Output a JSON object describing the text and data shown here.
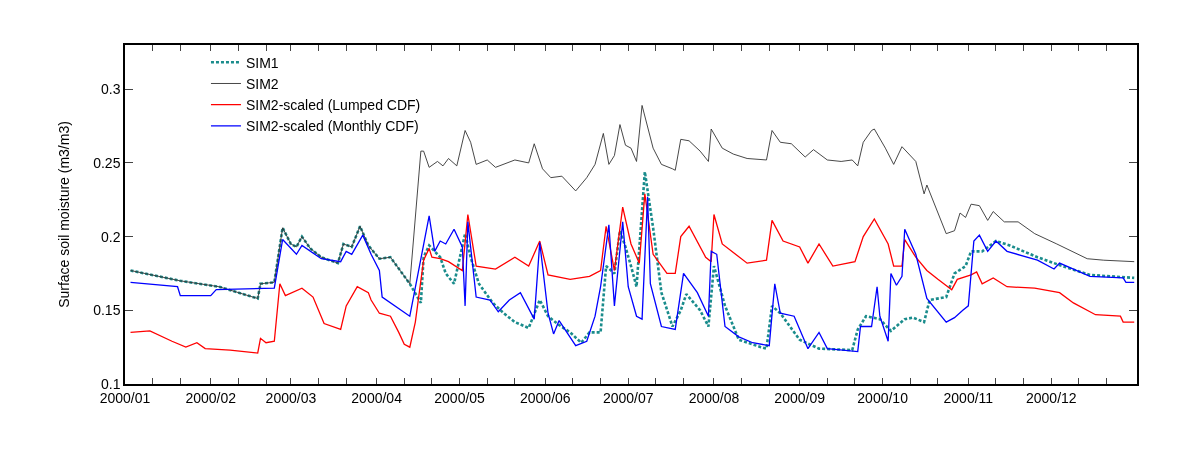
{
  "chart_data": {
    "type": "line",
    "ylabel": "Surface soil moisture (m3/m3)",
    "xlim": [
      "2000-01-01",
      "2001-01-01"
    ],
    "xticks": [
      {
        "value": "2000-01-01",
        "label": "2000/01"
      },
      {
        "value": "2000-01-11",
        "label": null
      },
      {
        "value": "2000-01-21",
        "label": null
      },
      {
        "value": "2000-02-01",
        "label": "2000/02"
      },
      {
        "value": "2000-02-11",
        "label": null
      },
      {
        "value": "2000-02-21",
        "label": null
      },
      {
        "value": "2000-03-01",
        "label": "2000/03"
      },
      {
        "value": "2000-03-11",
        "label": null
      },
      {
        "value": "2000-03-21",
        "label": null
      },
      {
        "value": "2000-04-01",
        "label": "2000/04"
      },
      {
        "value": "2000-04-11",
        "label": null
      },
      {
        "value": "2000-04-21",
        "label": null
      },
      {
        "value": "2000-05-01",
        "label": "2000/05"
      },
      {
        "value": "2000-05-11",
        "label": null
      },
      {
        "value": "2000-05-21",
        "label": null
      },
      {
        "value": "2000-06-01",
        "label": "2000/06"
      },
      {
        "value": "2000-06-11",
        "label": null
      },
      {
        "value": "2000-06-21",
        "label": null
      },
      {
        "value": "2000-07-01",
        "label": "2000/07"
      },
      {
        "value": "2000-07-11",
        "label": null
      },
      {
        "value": "2000-07-21",
        "label": null
      },
      {
        "value": "2000-08-01",
        "label": "2000/08"
      },
      {
        "value": "2000-08-11",
        "label": null
      },
      {
        "value": "2000-08-21",
        "label": null
      },
      {
        "value": "2000-09-01",
        "label": "2000/09"
      },
      {
        "value": "2000-09-11",
        "label": null
      },
      {
        "value": "2000-09-21",
        "label": null
      },
      {
        "value": "2000-10-01",
        "label": "2000/10"
      },
      {
        "value": "2000-10-11",
        "label": null
      },
      {
        "value": "2000-10-21",
        "label": null
      },
      {
        "value": "2000-11-01",
        "label": "2000/11"
      },
      {
        "value": "2000-11-11",
        "label": null
      },
      {
        "value": "2000-11-21",
        "label": null
      },
      {
        "value": "2000-12-01",
        "label": "2000/12"
      },
      {
        "value": "2000-12-11",
        "label": null
      },
      {
        "value": "2000-12-21",
        "label": null
      }
    ],
    "ylim": [
      0.1,
      0.33
    ],
    "yticks": [
      0.1,
      0.15,
      0.2,
      0.25,
      0.3
    ],
    "legend": "top left",
    "marker": "none",
    "series": [
      {
        "name": "SIM1",
        "color": "#1a8c8c",
        "line_style": "dotted",
        "x": [
          "2000-01-03",
          "2000-01-21",
          "2000-02-04",
          "2000-02-18",
          "2000-02-19",
          "2000-02-24",
          "2000-02-27",
          "2000-03-01",
          "2000-03-03",
          "2000-03-05",
          "2000-03-08",
          "2000-03-12",
          "2000-03-18",
          "2000-03-20",
          "2000-03-23",
          "2000-03-26",
          "2000-03-29",
          "2000-04-02",
          "2000-04-06",
          "2000-04-13",
          "2000-04-17",
          "2000-04-18",
          "2000-04-20",
          "2000-04-24",
          "2000-04-26",
          "2000-04-29",
          "2000-05-03",
          "2000-05-05",
          "2000-05-08",
          "2000-05-13",
          "2000-05-17",
          "2000-05-21",
          "2000-05-26",
          "2000-05-30",
          "2000-06-02",
          "2000-06-06",
          "2000-06-10",
          "2000-06-14",
          "2000-06-17",
          "2000-06-21",
          "2000-06-23",
          "2000-06-26",
          "2000-06-28",
          "2000-06-30",
          "2000-07-02",
          "2000-07-04",
          "2000-07-07",
          "2000-07-10",
          "2000-07-13",
          "2000-07-17",
          "2000-07-20",
          "2000-07-22",
          "2000-07-27",
          "2000-07-30",
          "2000-08-01",
          "2000-08-05",
          "2000-08-10",
          "2000-08-18",
          "2000-08-20",
          "2000-08-22",
          "2000-08-25",
          "2000-09-01",
          "2000-09-08",
          "2000-09-20",
          "2000-09-22",
          "2000-09-25",
          "2000-09-30",
          "2000-10-04",
          "2000-10-09",
          "2000-10-12",
          "2000-10-16",
          "2000-10-18",
          "2000-10-24",
          "2000-10-27",
          "2000-10-31",
          "2000-11-02",
          "2000-11-06",
          "2000-11-11",
          "2000-11-16",
          "2000-11-26",
          "2000-12-05",
          "2000-12-15",
          "2000-12-31"
        ],
        "values": [
          0.177,
          0.17,
          0.166,
          0.158,
          0.168,
          0.169,
          0.206,
          0.195,
          0.193,
          0.2,
          0.192,
          0.186,
          0.182,
          0.195,
          0.193,
          0.207,
          0.194,
          0.185,
          0.186,
          0.168,
          0.155,
          0.186,
          0.194,
          0.186,
          0.175,
          0.168,
          0.202,
          0.186,
          0.168,
          0.155,
          0.148,
          0.142,
          0.138,
          0.157,
          0.146,
          0.14,
          0.135,
          0.128,
          0.135,
          0.135,
          0.18,
          0.175,
          0.204,
          0.193,
          0.18,
          0.166,
          0.244,
          0.206,
          0.162,
          0.139,
          0.15,
          0.161,
          0.15,
          0.139,
          0.18,
          0.153,
          0.13,
          0.125,
          0.124,
          0.153,
          0.148,
          0.13,
          0.124,
          0.123,
          0.137,
          0.146,
          0.144,
          0.136,
          0.144,
          0.145,
          0.142,
          0.157,
          0.159,
          0.175,
          0.18,
          0.19,
          0.19,
          0.197,
          0.194,
          0.186,
          0.18,
          0.174,
          0.172
        ]
      },
      {
        "name": "SIM2",
        "color": "#333333",
        "line_style": "solid",
        "x": [
          "2000-01-03",
          "2000-01-21",
          "2000-02-04",
          "2000-02-18",
          "2000-02-19",
          "2000-02-24",
          "2000-02-27",
          "2000-03-01",
          "2000-03-03",
          "2000-03-05",
          "2000-03-08",
          "2000-03-12",
          "2000-03-18",
          "2000-03-20",
          "2000-03-23",
          "2000-03-26",
          "2000-03-29",
          "2000-04-02",
          "2000-04-06",
          "2000-04-13",
          "2000-04-17",
          "2000-04-18",
          "2000-04-20",
          "2000-04-23",
          "2000-04-25",
          "2000-04-27",
          "2000-04-30",
          "2000-05-03",
          "2000-05-05",
          "2000-05-07",
          "2000-05-11",
          "2000-05-14",
          "2000-05-21",
          "2000-05-26",
          "2000-05-28",
          "2000-05-31",
          "2000-06-03",
          "2000-06-07",
          "2000-06-12",
          "2000-06-16",
          "2000-06-19",
          "2000-06-22",
          "2000-06-24",
          "2000-06-26",
          "2000-06-28",
          "2000-06-30",
          "2000-07-02",
          "2000-07-04",
          "2000-07-06",
          "2000-07-10",
          "2000-07-13",
          "2000-07-17",
          "2000-07-18",
          "2000-07-20",
          "2000-07-23",
          "2000-07-27",
          "2000-07-30",
          "2000-07-31",
          "2000-08-04",
          "2000-08-08",
          "2000-08-13",
          "2000-08-20",
          "2000-08-22",
          "2000-08-25",
          "2000-08-29",
          "2000-09-03",
          "2000-09-06",
          "2000-09-11",
          "2000-09-16",
          "2000-09-20",
          "2000-09-22",
          "2000-09-24",
          "2000-09-27",
          "2000-09-28",
          "2000-10-02",
          "2000-10-05",
          "2000-10-08",
          "2000-10-13",
          "2000-10-16",
          "2000-10-17",
          "2000-10-24",
          "2000-10-27",
          "2000-10-29",
          "2000-10-31",
          "2000-11-02",
          "2000-11-05",
          "2000-11-08",
          "2000-11-10",
          "2000-11-14",
          "2000-11-19",
          "2000-11-25",
          "2000-12-03",
          "2000-12-14",
          "2000-12-20",
          "2000-12-31"
        ],
        "values": [
          0.177,
          0.17,
          0.166,
          0.158,
          0.168,
          0.169,
          0.206,
          0.195,
          0.193,
          0.2,
          0.192,
          0.186,
          0.182,
          0.195,
          0.193,
          0.207,
          0.194,
          0.185,
          0.186,
          0.168,
          0.258,
          0.258,
          0.247,
          0.251,
          0.248,
          0.253,
          0.248,
          0.272,
          0.264,
          0.249,
          0.252,
          0.247,
          0.252,
          0.25,
          0.263,
          0.246,
          0.24,
          0.241,
          0.231,
          0.24,
          0.249,
          0.27,
          0.249,
          0.255,
          0.276,
          0.262,
          0.26,
          0.251,
          0.289,
          0.26,
          0.249,
          0.246,
          0.245,
          0.266,
          0.265,
          0.258,
          0.251,
          0.273,
          0.26,
          0.256,
          0.253,
          0.252,
          0.272,
          0.264,
          0.263,
          0.254,
          0.259,
          0.252,
          0.251,
          0.252,
          0.248,
          0.264,
          0.272,
          0.273,
          0.26,
          0.249,
          0.261,
          0.251,
          0.229,
          0.235,
          0.202,
          0.204,
          0.216,
          0.213,
          0.222,
          0.221,
          0.211,
          0.217,
          0.21,
          0.21,
          0.202,
          0.195,
          0.185,
          0.184,
          0.183
        ]
      },
      {
        "name": "SIM2-scaled (Lumped CDF)",
        "color": "#ff0000",
        "line_style": "solid",
        "x": [
          "2000-01-03",
          "2000-01-10",
          "2000-01-18",
          "2000-01-23",
          "2000-01-27",
          "2000-01-30",
          "2000-02-08",
          "2000-02-18",
          "2000-02-19",
          "2000-02-21",
          "2000-02-24",
          "2000-02-26",
          "2000-02-28",
          "2000-03-05",
          "2000-03-09",
          "2000-03-13",
          "2000-03-19",
          "2000-03-21",
          "2000-03-25",
          "2000-03-29",
          "2000-03-30",
          "2000-04-02",
          "2000-04-06",
          "2000-04-09",
          "2000-04-11",
          "2000-04-13",
          "2000-04-15",
          "2000-04-18",
          "2000-04-20",
          "2000-04-21",
          "2000-04-24",
          "2000-04-27",
          "2000-05-02",
          "2000-05-04",
          "2000-05-07",
          "2000-05-14",
          "2000-05-21",
          "2000-05-26",
          "2000-05-30",
          "2000-06-02",
          "2000-06-10",
          "2000-06-17",
          "2000-06-21",
          "2000-06-23",
          "2000-06-26",
          "2000-06-29",
          "2000-07-02",
          "2000-07-05",
          "2000-07-07",
          "2000-07-10",
          "2000-07-15",
          "2000-07-18",
          "2000-07-20",
          "2000-07-23",
          "2000-07-29",
          "2000-07-31",
          "2000-08-01",
          "2000-08-04",
          "2000-08-13",
          "2000-08-20",
          "2000-08-22",
          "2000-08-26",
          "2000-09-01",
          "2000-09-04",
          "2000-09-08",
          "2000-09-13",
          "2000-09-21",
          "2000-09-24",
          "2000-09-28",
          "2000-10-03",
          "2000-10-05",
          "2000-10-08",
          "2000-10-09",
          "2000-10-13",
          "2000-10-17",
          "2000-10-21",
          "2000-10-26",
          "2000-10-28",
          "2000-11-02",
          "2000-11-04",
          "2000-11-06",
          "2000-11-10",
          "2000-11-15",
          "2000-11-25",
          "2000-12-04",
          "2000-12-09",
          "2000-12-17",
          "2000-12-26",
          "2000-12-27",
          "2000-12-31"
        ],
        "values": [
          0.135,
          0.136,
          0.129,
          0.125,
          0.128,
          0.124,
          0.123,
          0.121,
          0.131,
          0.128,
          0.129,
          0.168,
          0.16,
          0.165,
          0.159,
          0.141,
          0.137,
          0.153,
          0.166,
          0.162,
          0.157,
          0.148,
          0.146,
          0.135,
          0.127,
          0.125,
          0.142,
          0.184,
          0.192,
          0.186,
          0.185,
          0.183,
          0.177,
          0.215,
          0.18,
          0.178,
          0.186,
          0.18,
          0.197,
          0.174,
          0.171,
          0.173,
          0.177,
          0.207,
          0.177,
          0.22,
          0.195,
          0.182,
          0.229,
          0.188,
          0.175,
          0.175,
          0.2,
          0.207,
          0.186,
          0.183,
          0.215,
          0.195,
          0.182,
          0.184,
          0.211,
          0.197,
          0.193,
          0.182,
          0.195,
          0.18,
          0.183,
          0.2,
          0.212,
          0.195,
          0.18,
          0.18,
          0.198,
          0.186,
          0.177,
          0.171,
          0.164,
          0.171,
          0.174,
          0.176,
          0.168,
          0.172,
          0.166,
          0.165,
          0.162,
          0.155,
          0.147,
          0.146,
          0.142,
          0.142
        ]
      },
      {
        "name": "SIM2-scaled (Monthly CDF)",
        "color": "#0000ff",
        "line_style": "solid",
        "x": [
          "2000-01-03",
          "2000-01-20",
          "2000-01-21",
          "2000-02-01",
          "2000-02-03",
          "2000-02-24",
          "2000-02-27",
          "2000-03-03",
          "2000-03-05",
          "2000-03-12",
          "2000-03-19",
          "2000-03-21",
          "2000-03-23",
          "2000-03-27",
          "2000-03-30",
          "2000-04-02",
          "2000-04-03",
          "2000-04-13",
          "2000-04-20",
          "2000-04-22",
          "2000-04-24",
          "2000-04-26",
          "2000-04-29",
          "2000-05-02",
          "2000-05-03",
          "2000-05-04",
          "2000-05-07",
          "2000-05-12",
          "2000-05-15",
          "2000-05-19",
          "2000-05-23",
          "2000-05-28",
          "2000-05-30",
          "2000-06-02",
          "2000-06-04",
          "2000-06-06",
          "2000-06-12",
          "2000-06-16",
          "2000-06-19",
          "2000-06-21",
          "2000-06-24",
          "2000-06-26",
          "2000-06-29",
          "2000-07-01",
          "2000-07-04",
          "2000-07-06",
          "2000-07-08",
          "2000-07-09",
          "2000-07-13",
          "2000-07-18",
          "2000-07-21",
          "2000-07-26",
          "2000-07-30",
          "2000-07-31",
          "2000-08-02",
          "2000-08-05",
          "2000-08-10",
          "2000-08-15",
          "2000-08-21",
          "2000-08-23",
          "2000-08-25",
          "2000-08-30",
          "2000-09-04",
          "2000-09-08",
          "2000-09-11",
          "2000-09-22",
          "2000-09-23",
          "2000-09-27",
          "2000-09-29",
          "2000-09-30",
          "2000-10-03",
          "2000-10-04",
          "2000-10-06",
          "2000-10-08",
          "2000-10-09",
          "2000-10-13",
          "2000-10-17",
          "2000-10-24",
          "2000-10-27",
          "2000-10-30",
          "2000-11-01",
          "2000-11-03",
          "2000-11-05",
          "2000-11-08",
          "2000-11-11",
          "2000-11-15",
          "2000-11-26",
          "2000-12-02",
          "2000-12-04",
          "2000-12-15",
          "2000-12-27",
          "2000-12-28",
          "2000-12-31"
        ],
        "values": [
          0.169,
          0.166,
          0.16,
          0.16,
          0.164,
          0.165,
          0.198,
          0.188,
          0.194,
          0.185,
          0.183,
          0.19,
          0.188,
          0.201,
          0.188,
          0.177,
          0.159,
          0.146,
          0.214,
          0.19,
          0.197,
          0.195,
          0.205,
          0.193,
          0.153,
          0.21,
          0.159,
          0.157,
          0.149,
          0.157,
          0.162,
          0.144,
          0.196,
          0.148,
          0.134,
          0.143,
          0.126,
          0.129,
          0.146,
          0.166,
          0.208,
          0.153,
          0.21,
          0.166,
          0.146,
          0.144,
          0.227,
          0.168,
          0.139,
          0.137,
          0.175,
          0.162,
          0.146,
          0.19,
          0.188,
          0.139,
          0.132,
          0.128,
          0.126,
          0.168,
          0.148,
          0.146,
          0.124,
          0.135,
          0.124,
          0.122,
          0.139,
          0.139,
          0.166,
          0.146,
          0.129,
          0.175,
          0.167,
          0.173,
          0.205,
          0.188,
          0.158,
          0.142,
          0.145,
          0.15,
          0.153,
          0.197,
          0.201,
          0.19,
          0.197,
          0.19,
          0.184,
          0.178,
          0.182,
          0.173,
          0.172,
          0.169,
          0.169
        ]
      }
    ]
  }
}
